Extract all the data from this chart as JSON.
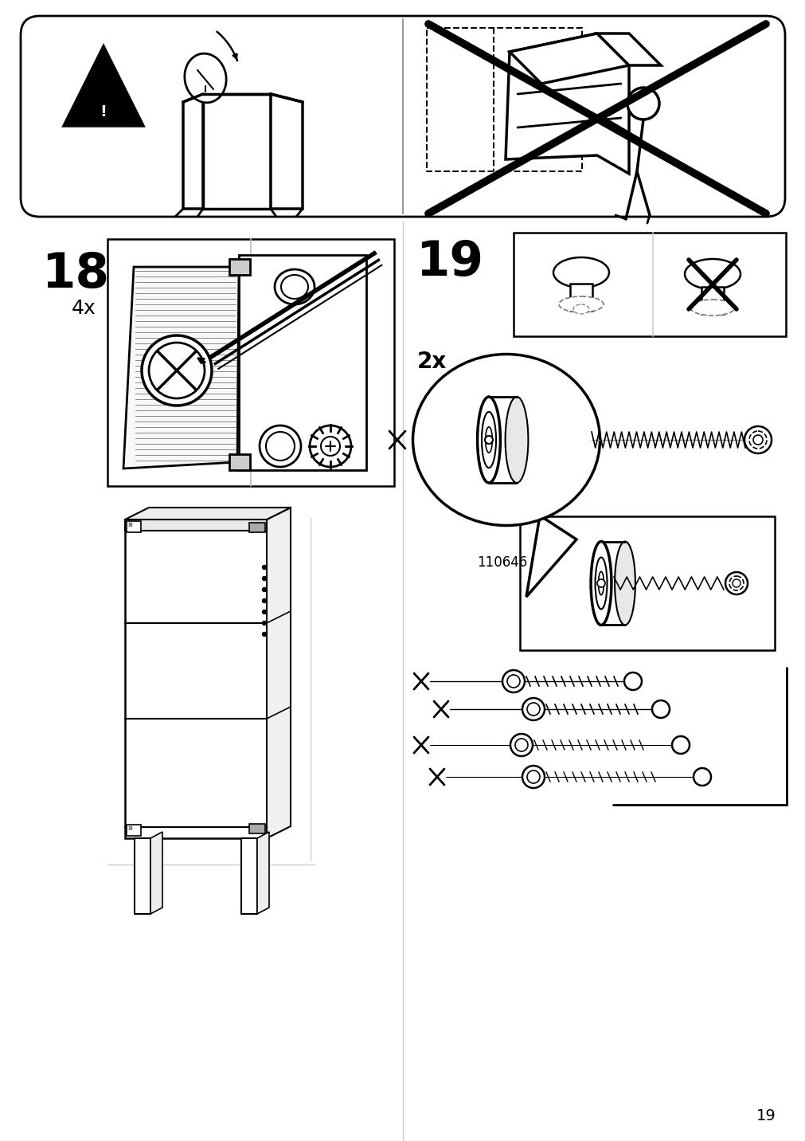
{
  "page_number": "19",
  "background_color": "#ffffff",
  "line_color": "#000000",
  "step18_label": "18",
  "step19_label": "19",
  "quantity18": "4x",
  "quantity19": "2x",
  "part_number": "110646",
  "fig_width": 10.12,
  "fig_height": 14.32
}
